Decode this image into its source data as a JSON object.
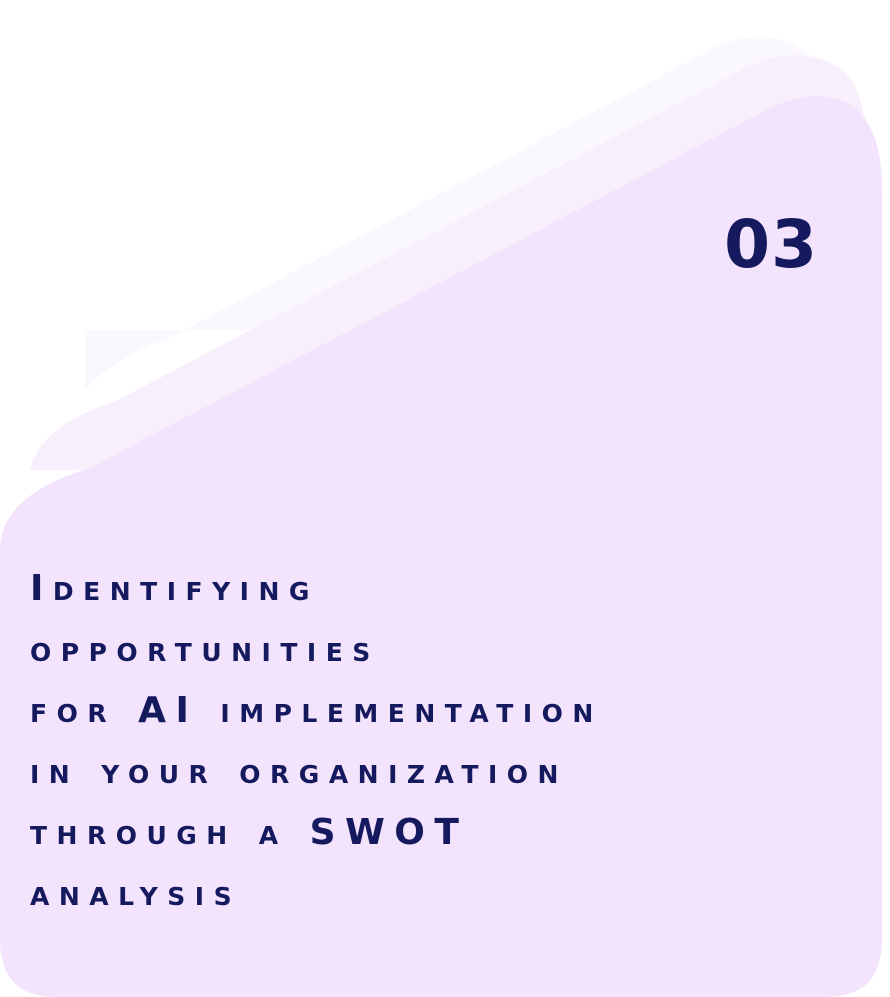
{
  "card": {
    "number": "03",
    "title_lines": [
      "Identifying",
      "opportunities",
      "for AI implementation",
      "in your organization",
      "through a SWOT",
      "analysis"
    ],
    "colors": {
      "back_layer": "#fbf7fe",
      "middle_layer": "#f8effd",
      "front_layer": "#f3e3fc",
      "text": "#15195e"
    }
  }
}
